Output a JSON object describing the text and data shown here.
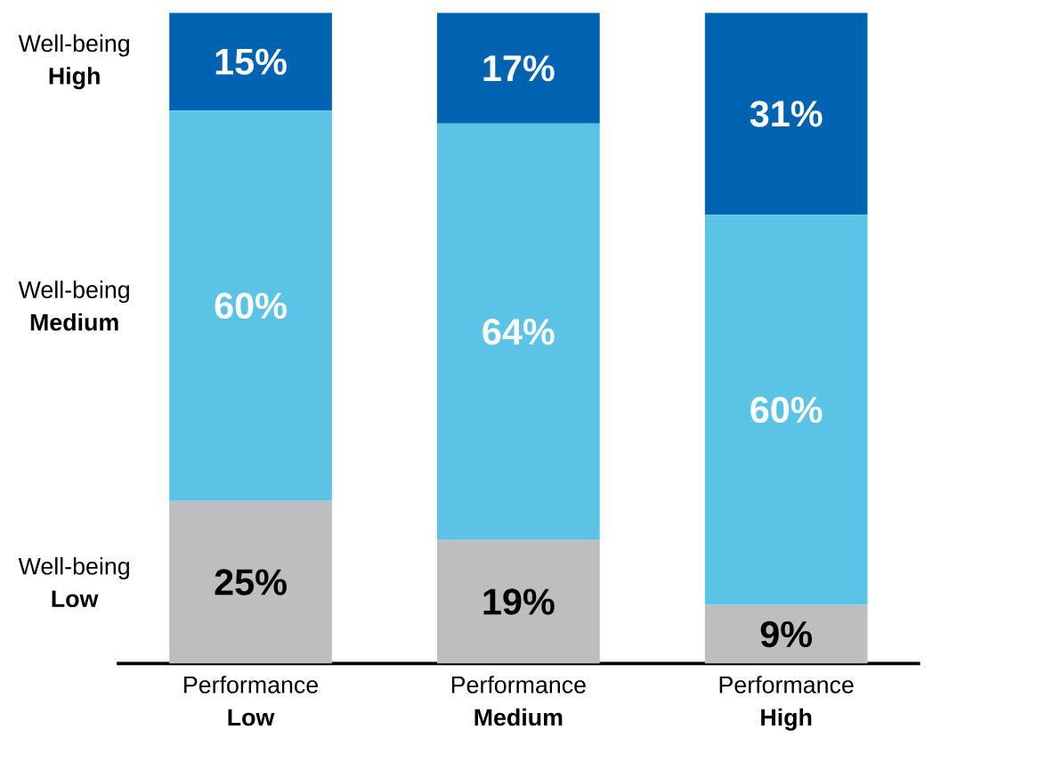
{
  "chart_data": {
    "type": "bar",
    "stacked": true,
    "categories": [
      "Performance **Low**",
      "Performance **Medium**",
      "Performance **High**"
    ],
    "tick_labels": "x",
    "grid": false,
    "legend": false,
    "series": [
      {
        "name": "Well-being **Low**",
        "color": "#bcbec0",
        "values": [
          25,
          19,
          9
        ],
        "value_labels": [
          "25%",
          "19%",
          "9%"
        ]
      },
      {
        "name": "Well-being **Medium**",
        "color": "#5bc3e6",
        "values": [
          60,
          64,
          60
        ],
        "value_labels": [
          "60%",
          "64%",
          "60%"
        ]
      },
      {
        "name": "Well-being **High**",
        "color": "#0063b1",
        "values": [
          15,
          17,
          31
        ],
        "value_labels": [
          "15%",
          "17%",
          "31%"
        ]
      }
    ]
  }
}
